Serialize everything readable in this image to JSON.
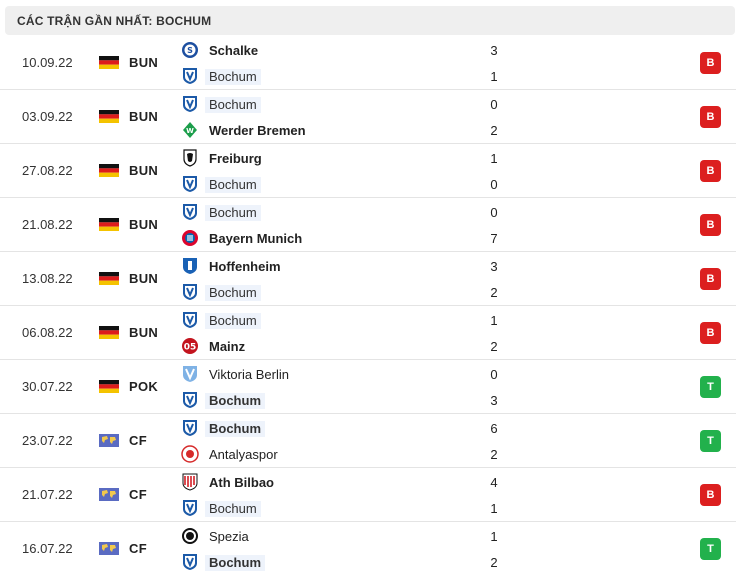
{
  "header": {
    "title": "CÁC TRẬN GẦN NHẤT: BOCHUM"
  },
  "colors": {
    "loss": "#dc1f1f",
    "win": "#22b14c",
    "focus_team_bg": "#eef3fb",
    "header_bg": "#efefef"
  },
  "matches": [
    {
      "date": "10.09.22",
      "flag": "germany-flag",
      "competition": "BUN",
      "home": {
        "name": "Schalke",
        "logo": "schalke-logo",
        "score": "3",
        "bold": true,
        "focus": false
      },
      "away": {
        "name": "Bochum",
        "logo": "bochum-logo",
        "score": "1",
        "bold": false,
        "focus": true
      },
      "result": "B",
      "result_type": "loss"
    },
    {
      "date": "03.09.22",
      "flag": "germany-flag",
      "competition": "BUN",
      "home": {
        "name": "Bochum",
        "logo": "bochum-logo",
        "score": "0",
        "bold": false,
        "focus": true
      },
      "away": {
        "name": "Werder Bremen",
        "logo": "werder-bremen-logo",
        "score": "2",
        "bold": true,
        "focus": false
      },
      "result": "B",
      "result_type": "loss"
    },
    {
      "date": "27.08.22",
      "flag": "germany-flag",
      "competition": "BUN",
      "home": {
        "name": "Freiburg",
        "logo": "freiburg-logo",
        "score": "1",
        "bold": true,
        "focus": false
      },
      "away": {
        "name": "Bochum",
        "logo": "bochum-logo",
        "score": "0",
        "bold": false,
        "focus": true
      },
      "result": "B",
      "result_type": "loss"
    },
    {
      "date": "21.08.22",
      "flag": "germany-flag",
      "competition": "BUN",
      "home": {
        "name": "Bochum",
        "logo": "bochum-logo",
        "score": "0",
        "bold": false,
        "focus": true
      },
      "away": {
        "name": "Bayern Munich",
        "logo": "bayern-munich-logo",
        "score": "7",
        "bold": true,
        "focus": false
      },
      "result": "B",
      "result_type": "loss"
    },
    {
      "date": "13.08.22",
      "flag": "germany-flag",
      "competition": "BUN",
      "home": {
        "name": "Hoffenheim",
        "logo": "hoffenheim-logo",
        "score": "3",
        "bold": true,
        "focus": false
      },
      "away": {
        "name": "Bochum",
        "logo": "bochum-logo",
        "score": "2",
        "bold": false,
        "focus": true
      },
      "result": "B",
      "result_type": "loss"
    },
    {
      "date": "06.08.22",
      "flag": "germany-flag",
      "competition": "BUN",
      "home": {
        "name": "Bochum",
        "logo": "bochum-logo",
        "score": "1",
        "bold": false,
        "focus": true
      },
      "away": {
        "name": "Mainz",
        "logo": "mainz-logo",
        "score": "2",
        "bold": true,
        "focus": false
      },
      "result": "B",
      "result_type": "loss"
    },
    {
      "date": "30.07.22",
      "flag": "germany-flag",
      "competition": "POK",
      "home": {
        "name": "Viktoria Berlin",
        "logo": "viktoria-berlin-logo",
        "score": "0",
        "bold": false,
        "focus": false
      },
      "away": {
        "name": "Bochum",
        "logo": "bochum-logo",
        "score": "3",
        "bold": true,
        "focus": true
      },
      "result": "T",
      "result_type": "win"
    },
    {
      "date": "23.07.22",
      "flag": "world-flag",
      "competition": "CF",
      "home": {
        "name": "Bochum",
        "logo": "bochum-logo",
        "score": "6",
        "bold": true,
        "focus": true
      },
      "away": {
        "name": "Antalyaspor",
        "logo": "antalyaspor-logo",
        "score": "2",
        "bold": false,
        "focus": false
      },
      "result": "T",
      "result_type": "win"
    },
    {
      "date": "21.07.22",
      "flag": "world-flag",
      "competition": "CF",
      "home": {
        "name": "Ath Bilbao",
        "logo": "ath-bilbao-logo",
        "score": "4",
        "bold": true,
        "focus": false
      },
      "away": {
        "name": "Bochum",
        "logo": "bochum-logo",
        "score": "1",
        "bold": false,
        "focus": true
      },
      "result": "B",
      "result_type": "loss"
    },
    {
      "date": "16.07.22",
      "flag": "world-flag",
      "competition": "CF",
      "home": {
        "name": "Spezia",
        "logo": "spezia-logo",
        "score": "1",
        "bold": false,
        "focus": false
      },
      "away": {
        "name": "Bochum",
        "logo": "bochum-logo",
        "score": "2",
        "bold": true,
        "focus": true
      },
      "result": "T",
      "result_type": "win"
    }
  ]
}
